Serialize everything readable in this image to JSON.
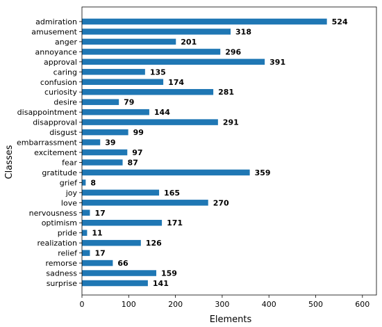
{
  "chart_data": {
    "type": "bar",
    "orientation": "horizontal",
    "xlabel": "Elements",
    "ylabel": "Classes",
    "xlim": [
      0,
      630
    ],
    "xticks": [
      0,
      100,
      200,
      300,
      400,
      500,
      600
    ],
    "grid": false,
    "bar_color": "#1f77b4",
    "categories": [
      "admiration",
      "amusement",
      "anger",
      "annoyance",
      "approval",
      "caring",
      "confusion",
      "curiosity",
      "desire",
      "disappointment",
      "disapproval",
      "disgust",
      "embarrassment",
      "excitement",
      "fear",
      "gratitude",
      "grief",
      "joy",
      "love",
      "nervousness",
      "optimism",
      "pride",
      "realization",
      "relief",
      "remorse",
      "sadness",
      "surprise"
    ],
    "values": [
      524,
      318,
      201,
      296,
      391,
      135,
      174,
      281,
      79,
      144,
      291,
      99,
      39,
      97,
      87,
      359,
      8,
      165,
      270,
      17,
      171,
      11,
      126,
      17,
      66,
      159,
      141
    ]
  }
}
